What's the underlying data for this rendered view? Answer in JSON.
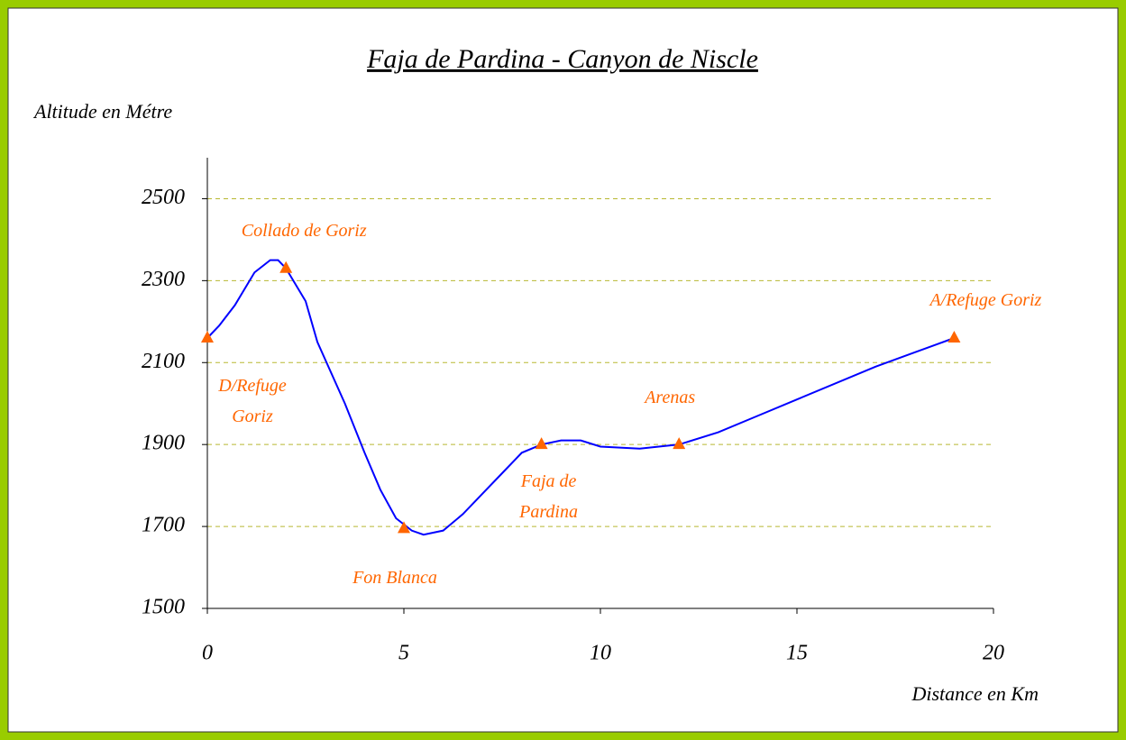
{
  "chart_data": {
    "type": "line",
    "title": "Faja de Pardina - Canyon de Niscle",
    "ylabel": "Altitude en Métre",
    "xlabel": "Distance en Km",
    "x": [
      0,
      0.3,
      0.7,
      1.2,
      1.6,
      1.8,
      2,
      2.5,
      2.8,
      3.5,
      4,
      4.4,
      4.8,
      5.2,
      5.5,
      6,
      6.5,
      7,
      7.5,
      8,
      8.5,
      9,
      9.5,
      10,
      11,
      12,
      13,
      14,
      15,
      17,
      19
    ],
    "values": [
      2160,
      2190,
      2240,
      2320,
      2350,
      2350,
      2330,
      2250,
      2150,
      2000,
      1880,
      1790,
      1720,
      1690,
      1680,
      1690,
      1730,
      1780,
      1830,
      1880,
      1900,
      1910,
      1910,
      1895,
      1890,
      1900,
      1930,
      1970,
      2010,
      2090,
      2160
    ],
    "color": "#0000ff",
    "points": [
      {
        "x": 0,
        "y": 2160,
        "label": "D/Refuge Goriz"
      },
      {
        "x": 2,
        "y": 2330,
        "label": "Collado de Goriz"
      },
      {
        "x": 5,
        "y": 1695,
        "label": "Fon Blanca"
      },
      {
        "x": 8.5,
        "y": 1900,
        "label": "Faja de Pardina"
      },
      {
        "x": 12,
        "y": 1900,
        "label": "Arenas"
      },
      {
        "x": 19,
        "y": 2160,
        "label": "A/Refuge Goriz"
      }
    ],
    "marker_color": "#ff6600",
    "xlim": [
      0,
      20
    ],
    "xticks": [
      0,
      5,
      10,
      15,
      20
    ],
    "ylim": [
      1500,
      2600
    ],
    "yticks": [
      1500,
      1700,
      1900,
      2100,
      2300,
      2500
    ],
    "grid": true,
    "grid_color": "#b8b830"
  }
}
